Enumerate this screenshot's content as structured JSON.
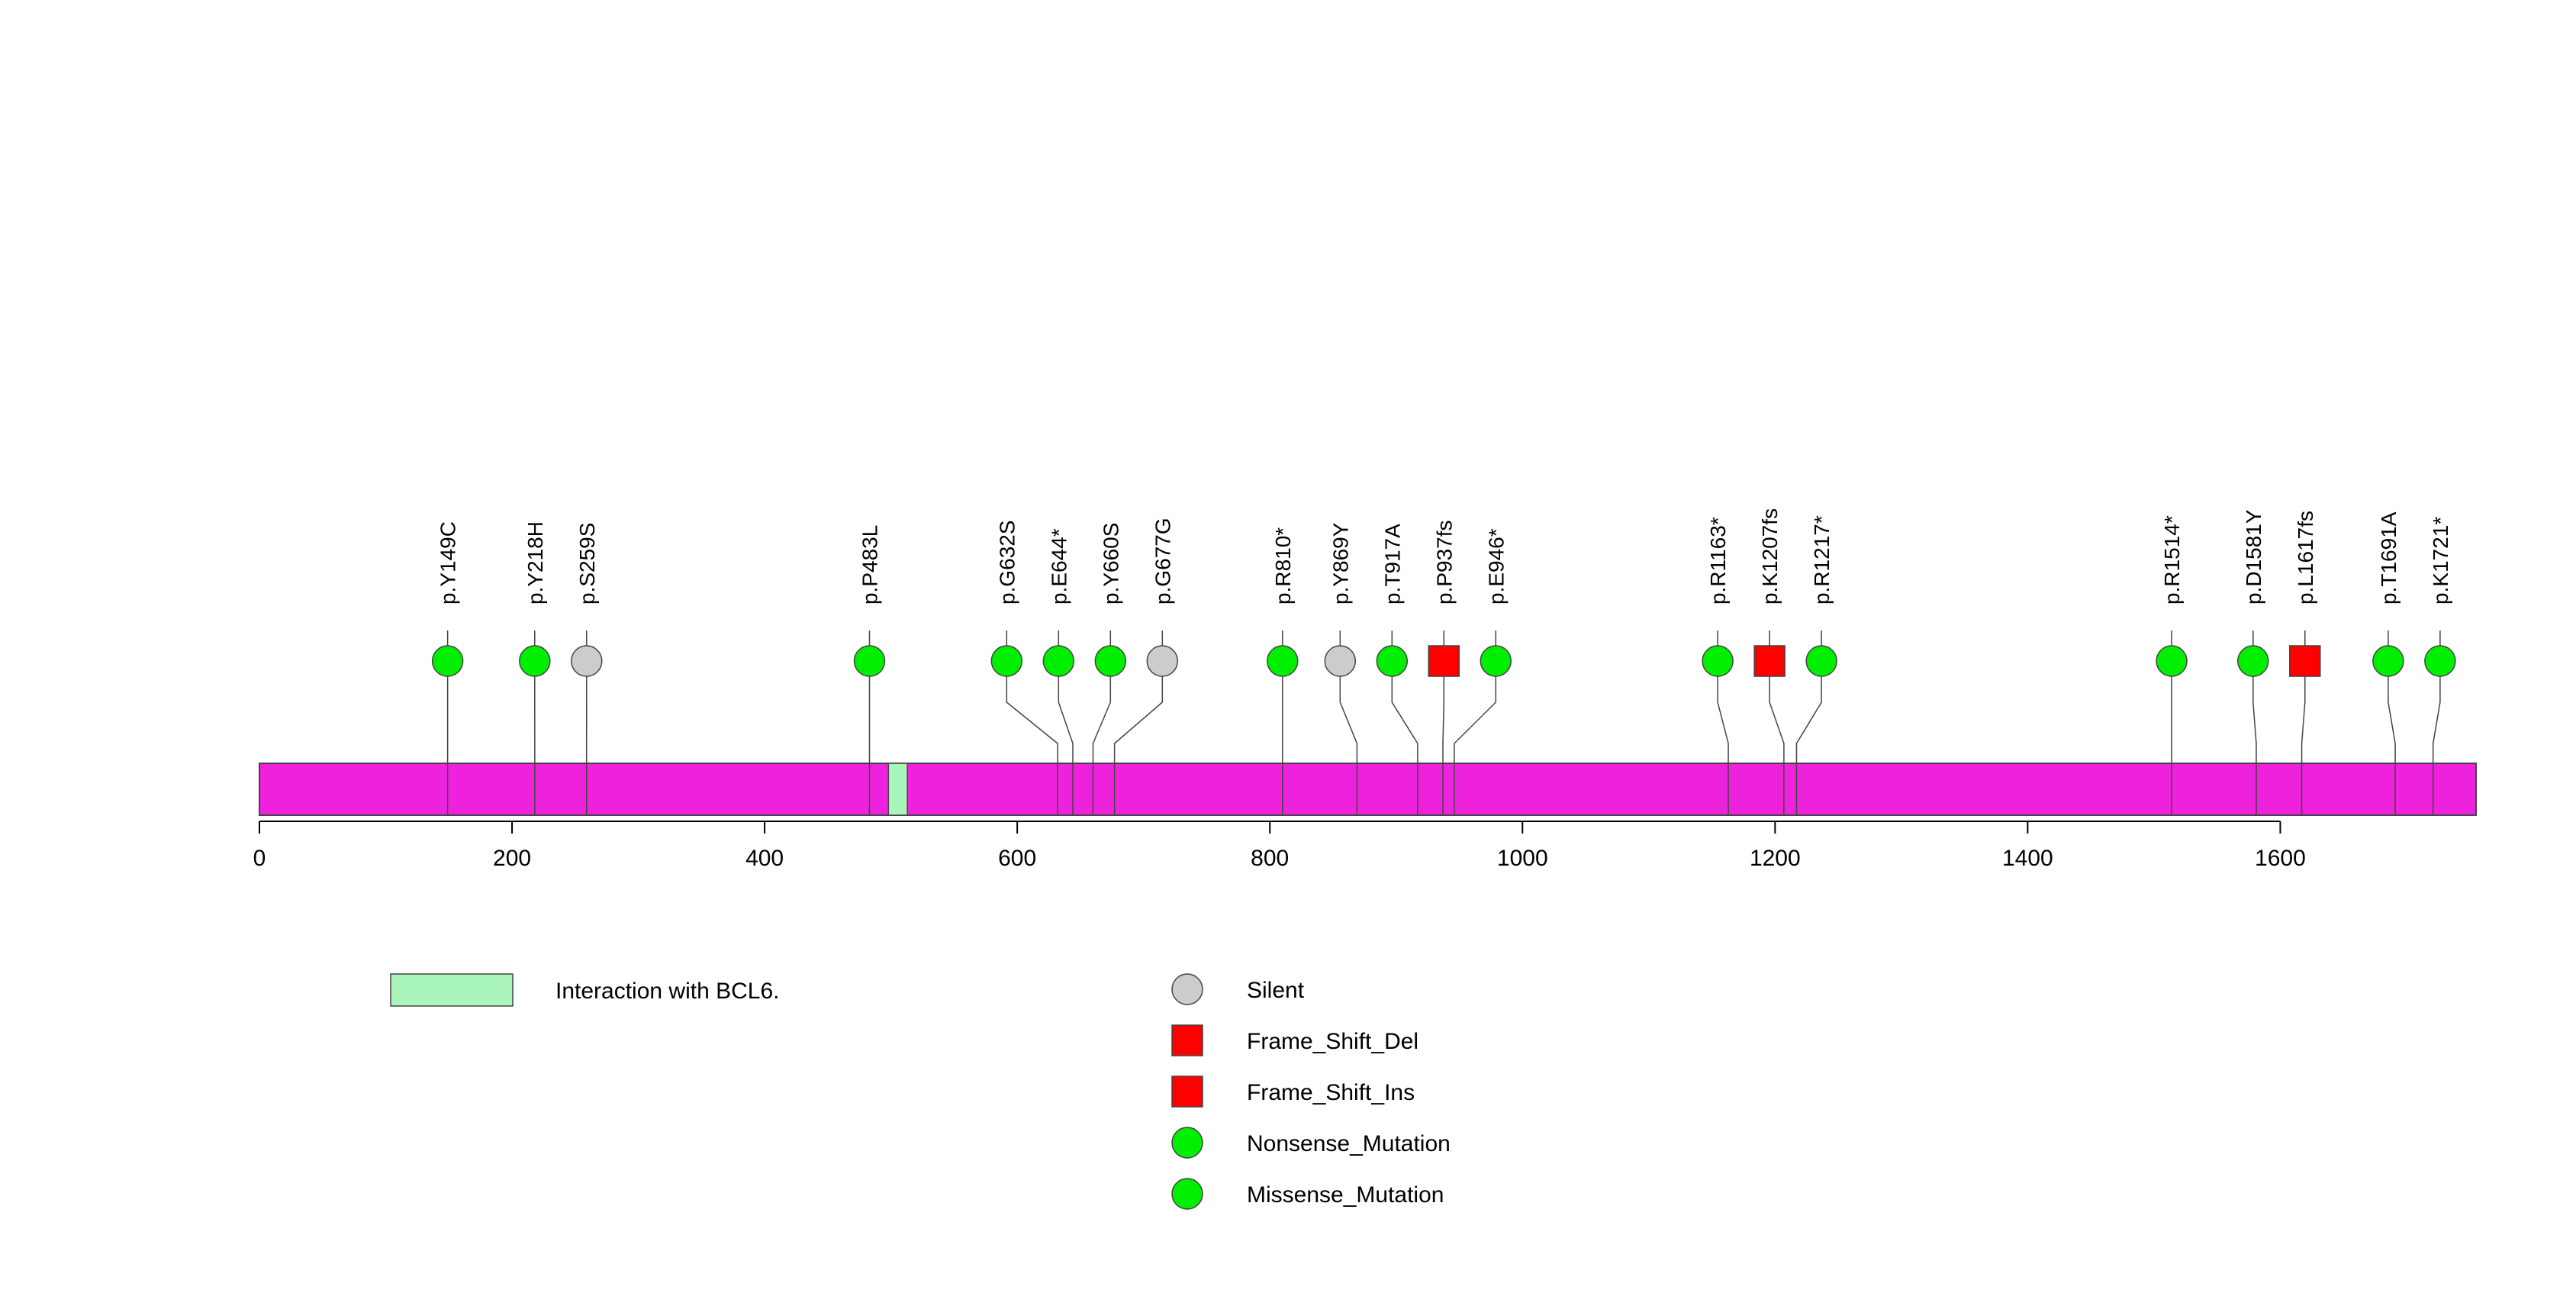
{
  "chart_data": {
    "type": "lollipop",
    "protein_length": 1755,
    "x_ticks": [
      0,
      200,
      400,
      600,
      800,
      1000,
      1200,
      1400,
      1600
    ],
    "x_tick_labels": [
      "0",
      "200",
      "400",
      "600",
      "800",
      "1000",
      "1200",
      "1400",
      "1600"
    ],
    "xlim": [
      0,
      1755
    ],
    "colors": {
      "protein_bar": "#ee22dd",
      "domain": "#aaf5bb",
      "silent": "#cccccc",
      "frameshift": "#ff0000",
      "nonsense": "#00ee00",
      "missense": "#00ee00",
      "stroke": "#444444"
    },
    "domains": [
      {
        "label": "Interaction with BCL6.",
        "start": 498,
        "end": 513
      }
    ],
    "mutations": [
      {
        "label": "p.Y149C",
        "pos": 149,
        "type": "Missense_Mutation"
      },
      {
        "label": "p.Y218H",
        "pos": 218,
        "type": "Missense_Mutation"
      },
      {
        "label": "p.S259S",
        "pos": 259,
        "type": "Silent"
      },
      {
        "label": "p.P483L",
        "pos": 483,
        "type": "Missense_Mutation"
      },
      {
        "label": "p.G632S",
        "pos": 632,
        "type": "Missense_Mutation"
      },
      {
        "label": "p.E644*",
        "pos": 644,
        "type": "Nonsense_Mutation"
      },
      {
        "label": "p.Y660S",
        "pos": 660,
        "type": "Missense_Mutation"
      },
      {
        "label": "p.G677G",
        "pos": 677,
        "type": "Silent"
      },
      {
        "label": "p.R810*",
        "pos": 810,
        "type": "Nonsense_Mutation"
      },
      {
        "label": "p.Y869Y",
        "pos": 869,
        "type": "Silent"
      },
      {
        "label": "p.T917A",
        "pos": 917,
        "type": "Missense_Mutation"
      },
      {
        "label": "p.P937fs",
        "pos": 937,
        "type": "Frame_Shift_Del"
      },
      {
        "label": "p.E946*",
        "pos": 946,
        "type": "Nonsense_Mutation"
      },
      {
        "label": "p.R1163*",
        "pos": 1163,
        "type": "Nonsense_Mutation"
      },
      {
        "label": "p.K1207fs",
        "pos": 1207,
        "type": "Frame_Shift_Ins"
      },
      {
        "label": "p.R1217*",
        "pos": 1217,
        "type": "Nonsense_Mutation"
      },
      {
        "label": "p.R1514*",
        "pos": 1514,
        "type": "Nonsense_Mutation"
      },
      {
        "label": "p.D1581Y",
        "pos": 1581,
        "type": "Missense_Mutation"
      },
      {
        "label": "p.L1617fs",
        "pos": 1617,
        "type": "Frame_Shift_Del"
      },
      {
        "label": "p.T1691A",
        "pos": 1691,
        "type": "Missense_Mutation"
      },
      {
        "label": "p.K1721*",
        "pos": 1721,
        "type": "Nonsense_Mutation"
      }
    ],
    "domain_legend": [
      {
        "label": "Interaction with BCL6."
      }
    ],
    "mutation_legend": [
      {
        "label": "Silent",
        "shape": "circle",
        "color": "#cccccc"
      },
      {
        "label": "Frame_Shift_Del",
        "shape": "square",
        "color": "#ff0000"
      },
      {
        "label": "Frame_Shift_Ins",
        "shape": "square",
        "color": "#ff0000"
      },
      {
        "label": "Nonsense_Mutation",
        "shape": "circle",
        "color": "#00ee00"
      },
      {
        "label": "Missense_Mutation",
        "shape": "circle",
        "color": "#00ee00"
      }
    ]
  }
}
